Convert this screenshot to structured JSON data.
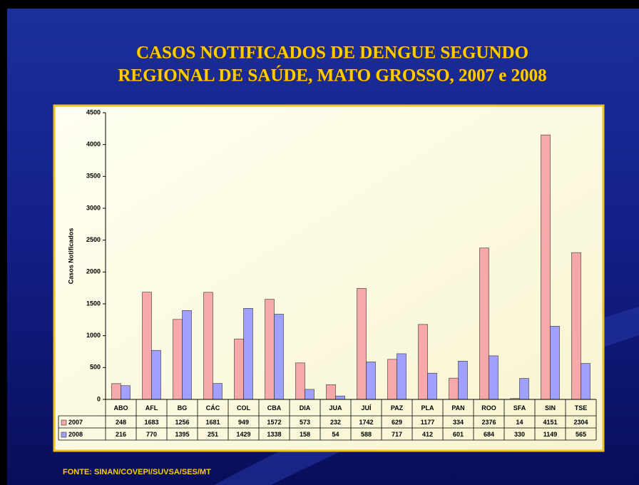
{
  "chart_data": {
    "type": "bar",
    "title": [
      "CASOS NOTIFICADOS DE DENGUE SEGUNDO",
      "REGIONAL DE SAÚDE, MATO GROSSO, 2007 e 2008"
    ],
    "y_label": "Casos Notificados",
    "source": "FONTE: SINAN/COVEPI/SUVSA/SES/MT",
    "categories": [
      "ABO",
      "AFL",
      "BG",
      "CÁC",
      "COL",
      "CBA",
      "DIA",
      "JUA",
      "JUÍ",
      "PAZ",
      "PLA",
      "PAN",
      "ROO",
      "SFA",
      "SIN",
      "TSE"
    ],
    "series": [
      {
        "name": "2007",
        "color": "#f7a8a8",
        "values": [
          248,
          1683,
          1256,
          1681,
          949,
          1572,
          573,
          232,
          1742,
          629,
          1177,
          334,
          2376,
          14,
          4151,
          2304
        ]
      },
      {
        "name": "2008",
        "color": "#a0a0ff",
        "values": [
          216,
          770,
          1395,
          251,
          1429,
          1338,
          158,
          54,
          588,
          717,
          412,
          601,
          684,
          330,
          1149,
          565
        ]
      }
    ],
    "ylim": [
      0,
      4500
    ],
    "yticks": [
      0,
      500,
      1000,
      1500,
      2000,
      2500,
      3000,
      3500,
      4000,
      4500
    ]
  }
}
